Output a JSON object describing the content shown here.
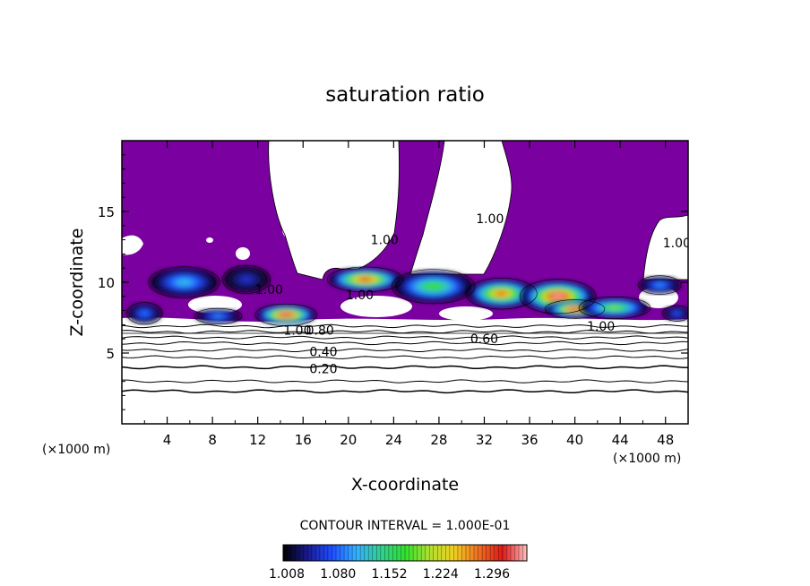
{
  "chart_data": {
    "type": "heatmap",
    "title": "saturation ratio",
    "xlabel": "X-coordinate",
    "ylabel": "Z-coordinate",
    "x_unit_label": "(×1000 m)",
    "x_unit_label_right": "(×1000 m)",
    "xlim": [
      0,
      50
    ],
    "ylim": [
      0,
      20
    ],
    "x_ticks": [
      4,
      8,
      12,
      16,
      20,
      24,
      28,
      32,
      36,
      40,
      44,
      48
    ],
    "y_ticks": [
      5,
      10,
      15
    ],
    "contour_interval_text": "CONTOUR INTERVAL = 1.000E-01",
    "colorbar": {
      "range": [
        1.008,
        1.35
      ],
      "tick_labels": [
        "1.008",
        "1.080",
        "1.152",
        "1.224",
        "1.296"
      ],
      "colors": [
        "#000000",
        "#1a1a8c",
        "#1f4fff",
        "#33b0ff",
        "#30d090",
        "#30e030",
        "#b0e030",
        "#f0d020",
        "#f07020",
        "#e01818",
        "#ffc0c0"
      ]
    },
    "background_color": "#7a00a0",
    "contour_levels": [
      0.2,
      0.3,
      0.4,
      0.5,
      0.6,
      0.7,
      0.8,
      0.9,
      1.0
    ],
    "contour_labels": [
      {
        "text": "0.20",
        "x": 17.8,
        "z": 3.9
      },
      {
        "text": "0.40",
        "x": 17.8,
        "z": 5.1
      },
      {
        "text": "0.60",
        "x": 32.0,
        "z": 6.0
      },
      {
        "text": "1.00",
        "x": 15.5,
        "z": 6.6
      },
      {
        "text": "0.80",
        "x": 17.5,
        "z": 6.6
      },
      {
        "text": "1.00",
        "x": 42.3,
        "z": 6.9
      },
      {
        "text": "1.00",
        "x": 21.0,
        "z": 9.1
      },
      {
        "text": "1.00",
        "x": 13.0,
        "z": 9.5
      },
      {
        "text": "1.00",
        "x": 23.2,
        "z": 13.0
      },
      {
        "text": "1.00",
        "x": 32.5,
        "z": 14.5
      },
      {
        "text": "1.00",
        "x": 49.0,
        "z": 12.8
      }
    ],
    "supersaturated_blobs": [
      {
        "x": 5.5,
        "z": 10.0,
        "rx": 3.0,
        "rz": 1.0,
        "peak": 1.12
      },
      {
        "x": 2.0,
        "z": 7.8,
        "rx": 1.5,
        "rz": 0.7,
        "peak": 1.09
      },
      {
        "x": 14.5,
        "z": 7.7,
        "rx": 2.6,
        "rz": 0.7,
        "peak": 1.33
      },
      {
        "x": 8.5,
        "z": 7.6,
        "rx": 2.0,
        "rz": 0.5,
        "peak": 1.1
      },
      {
        "x": 11.0,
        "z": 10.2,
        "rx": 2.0,
        "rz": 0.9,
        "peak": 1.06
      },
      {
        "x": 21.5,
        "z": 10.2,
        "rx": 3.2,
        "rz": 0.8,
        "peak": 1.3
      },
      {
        "x": 27.5,
        "z": 9.7,
        "rx": 3.5,
        "rz": 1.1,
        "peak": 1.18
      },
      {
        "x": 33.5,
        "z": 9.2,
        "rx": 3.0,
        "rz": 1.0,
        "peak": 1.28
      },
      {
        "x": 38.5,
        "z": 9.0,
        "rx": 3.2,
        "rz": 1.1,
        "peak": 1.34
      },
      {
        "x": 40.0,
        "z": 8.1,
        "rx": 2.5,
        "rz": 0.6,
        "peak": 1.33
      },
      {
        "x": 43.5,
        "z": 8.2,
        "rx": 3.0,
        "rz": 0.7,
        "peak": 1.2
      },
      {
        "x": 47.5,
        "z": 9.8,
        "rx": 1.8,
        "rz": 0.6,
        "peak": 1.1
      },
      {
        "x": 49.0,
        "z": 7.8,
        "rx": 1.2,
        "rz": 0.5,
        "peak": 1.08
      }
    ]
  }
}
